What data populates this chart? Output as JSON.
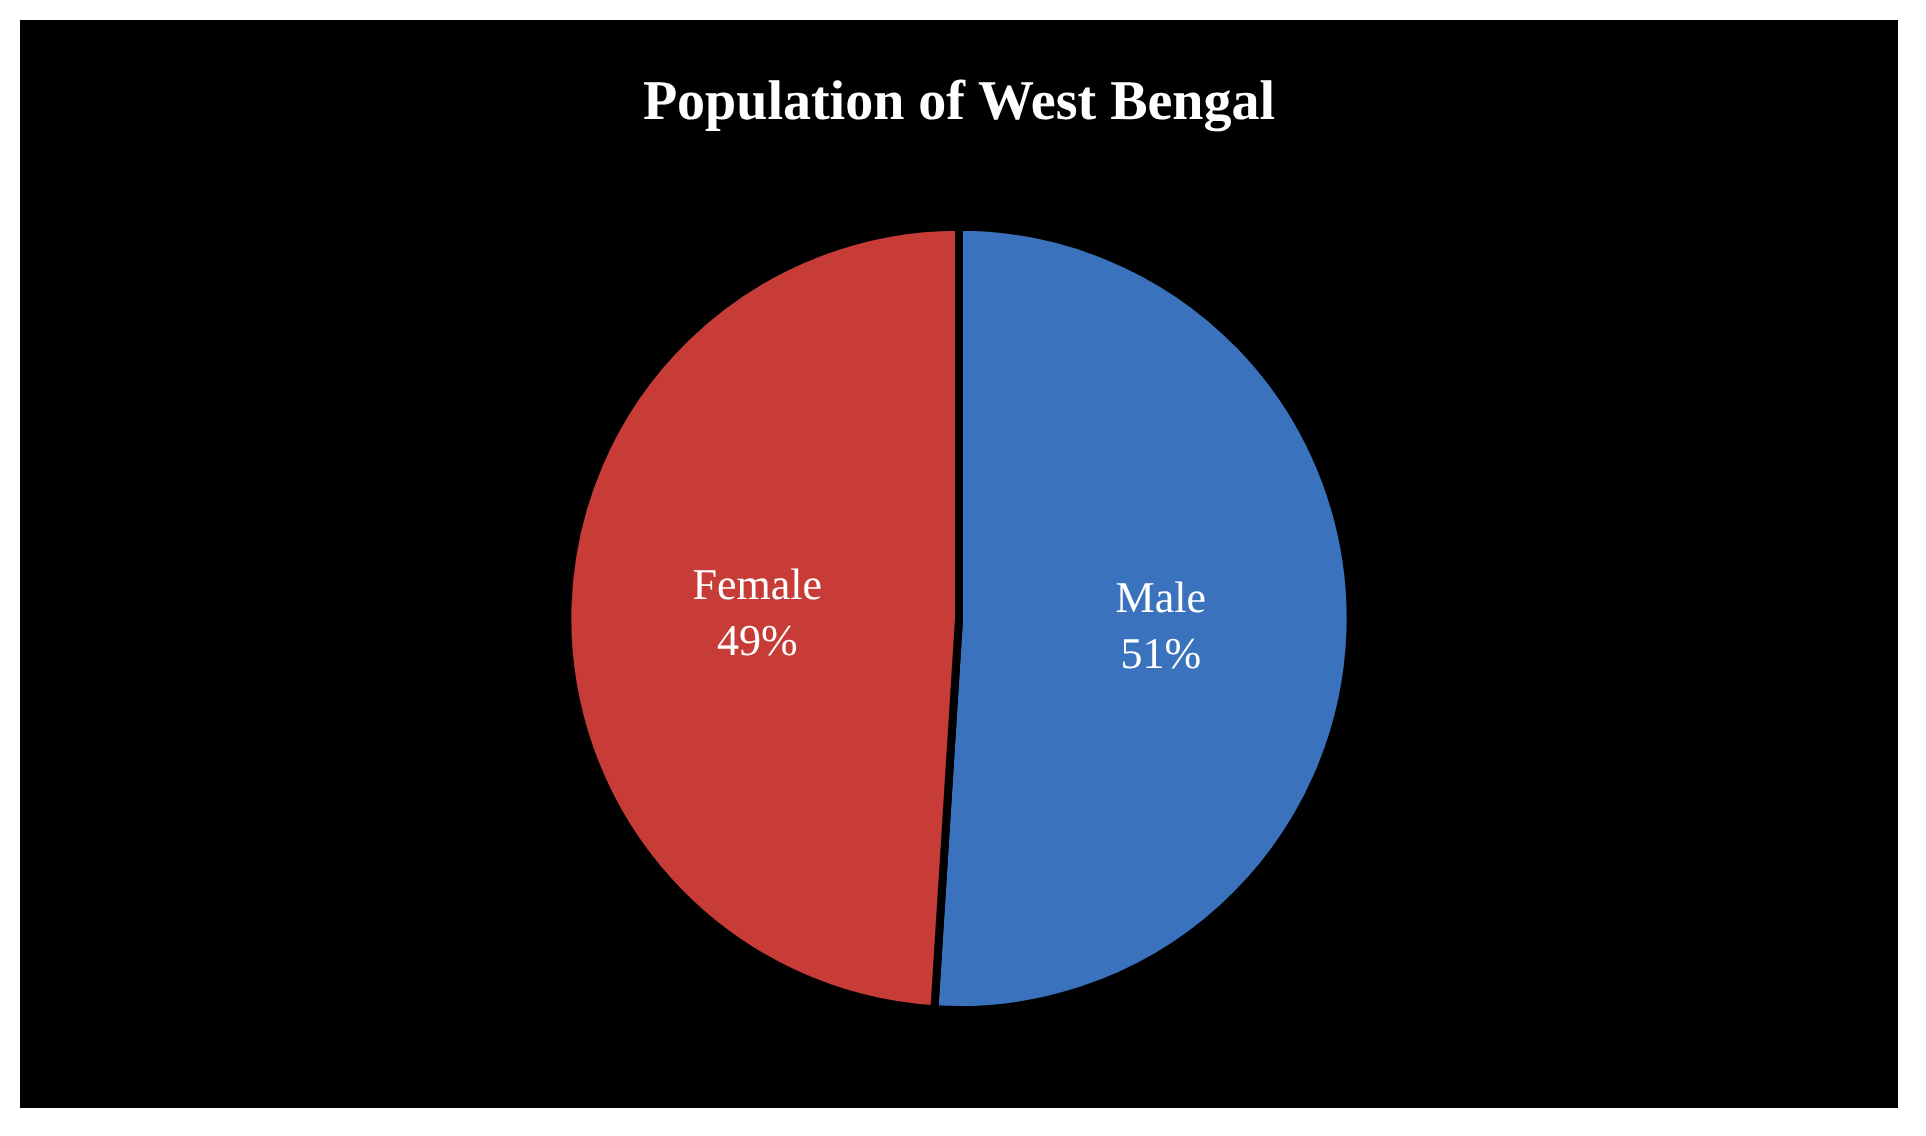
{
  "chart_data": {
    "type": "pie",
    "title": "Population of West Bengal",
    "categories": [
      "Male",
      "Female"
    ],
    "values": [
      51,
      49
    ],
    "colors": [
      "#3a72bd",
      "#c73c37"
    ],
    "value_labels": [
      "51%",
      "49%"
    ]
  }
}
